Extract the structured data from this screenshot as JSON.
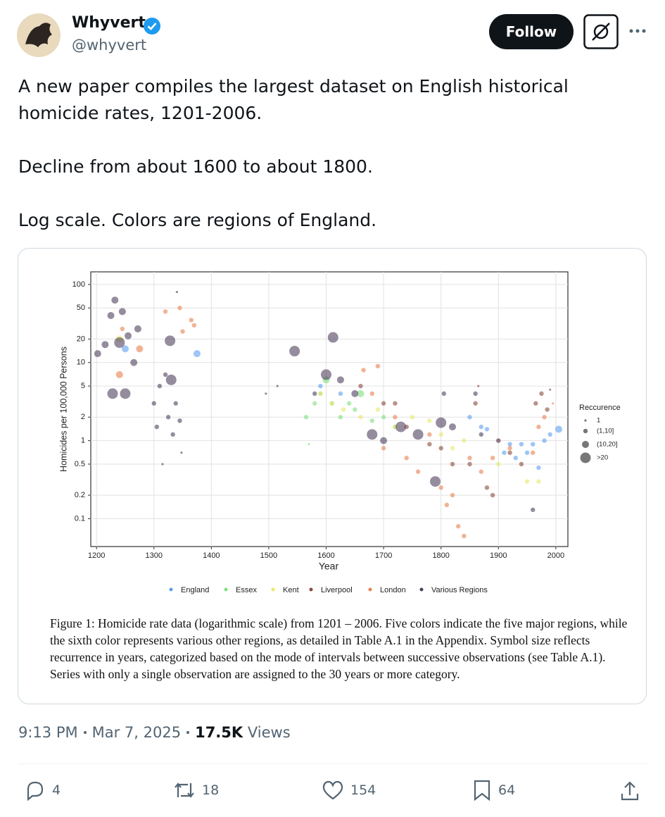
{
  "tweet": {
    "author_name": "Whyvert",
    "handle": "@whyvert",
    "follow": "Follow",
    "text": [
      "A new paper compiles the largest dataset on English historical homicide rates, 1201-2006.",
      "Decline from about 1600 to about 1800.",
      "Log scale. Colors are regions of England."
    ],
    "time": "9:13 PM",
    "date": "Mar 7, 2025",
    "views_count": "17.5K",
    "views_label": "Views",
    "replies": 4,
    "retweets": 18,
    "likes": 154,
    "bookmarks": 64
  },
  "chart_data": {
    "type": "scatter",
    "xlabel": "Year",
    "ylabel": "Homicides per 100,000 Persons",
    "log_y": true,
    "grid": true,
    "xlim": [
      1190,
      2021
    ],
    "ylim": [
      0.044,
      145
    ],
    "xticks": [
      1200,
      1300,
      1400,
      1500,
      1600,
      1700,
      1800,
      1900,
      2000
    ],
    "yticks": [
      0.1,
      0.2,
      0.5,
      1,
      2,
      5,
      10,
      20,
      50,
      100
    ],
    "size_legend": {
      "title": "Reccurence",
      "labels": [
        "1",
        "(1,10]",
        "(10,20]",
        ">20"
      ]
    },
    "series": [
      {
        "name": "England",
        "color": "#5b9ff0",
        "x": [
          1250,
          1375,
          1590,
          1625,
          1850,
          1870,
          1880,
          1900,
          1910,
          1920,
          1930,
          1940,
          1950,
          1960,
          1970,
          1980,
          1990,
          2005
        ],
        "values": [
          15,
          13,
          5,
          4,
          2,
          1.5,
          1.4,
          1,
          0.7,
          0.9,
          0.6,
          0.9,
          0.7,
          0.9,
          0.45,
          1,
          1.2,
          1.4
        ],
        "sizes": [
          "(10,20]",
          "(10,20]",
          "(1,10]",
          "(1,10]",
          "(1,10]",
          "(1,10]",
          "(1,10]",
          "(1,10]",
          "(1,10]",
          "(1,10]",
          "(1,10]",
          "(1,10]",
          "(1,10]",
          "(1,10]",
          "(1,10]",
          "(1,10]",
          "(1,10]",
          "(10,20]"
        ]
      },
      {
        "name": "Essex",
        "color": "#7fe07f",
        "x": [
          1565,
          1570,
          1580,
          1590,
          1600,
          1610,
          1625,
          1640,
          1650,
          1660,
          1680,
          1700,
          1720
        ],
        "values": [
          2,
          0.9,
          3,
          4,
          6,
          3,
          2,
          3,
          2.5,
          4,
          1.8,
          2,
          1.5
        ],
        "sizes": [
          "(1,10]",
          "1",
          "(1,10]",
          "(1,10]",
          "(10,20]",
          "(1,10]",
          "(1,10]",
          "(1,10]",
          "(1,10]",
          "(10,20]",
          "(1,10]",
          "(1,10]",
          "(1,10]"
        ]
      },
      {
        "name": "Kent",
        "color": "#e8e86a",
        "x": [
          1240,
          1590,
          1610,
          1630,
          1660,
          1690,
          1720,
          1750,
          1780,
          1800,
          1820,
          1840,
          1900,
          1950,
          1970
        ],
        "values": [
          20,
          4,
          3,
          2.5,
          2,
          2.5,
          1.5,
          2,
          1.8,
          1.2,
          0.8,
          1,
          0.5,
          0.3,
          0.3
        ],
        "sizes": [
          "(10,20]",
          "(1,10]",
          "(1,10]",
          "(1,10]",
          "(1,10]",
          "(1,10]",
          "(1,10]",
          "(1,10]",
          "(1,10]",
          "(1,10]",
          "(1,10]",
          "(1,10]",
          "(1,10]",
          "(1,10]",
          "(1,10]"
        ]
      },
      {
        "name": "Liverpool",
        "color": "#8b4a3a",
        "x": [
          1660,
          1700,
          1720,
          1740,
          1780,
          1800,
          1820,
          1850,
          1860,
          1865,
          1880,
          1890,
          1900,
          1920,
          1940,
          1965,
          1975,
          1985,
          1990
        ],
        "values": [
          5,
          3,
          3,
          1.5,
          0.9,
          0.8,
          0.5,
          0.5,
          3,
          5,
          0.25,
          0.2,
          1,
          0.7,
          0.5,
          3,
          4,
          2.5,
          4.5
        ],
        "sizes": [
          "(1,10]",
          "(1,10]",
          "(1,10]",
          "(1,10]",
          "(1,10]",
          "(1,10]",
          "(1,10]",
          "(1,10]",
          "(1,10]",
          "1",
          "(1,10]",
          "(1,10]",
          "(1,10]",
          "(1,10]",
          "(1,10]",
          "(1,10]",
          "(1,10]",
          "(1,10]",
          "1"
        ]
      },
      {
        "name": "London",
        "color": "#e8804f",
        "x": [
          1240,
          1245,
          1275,
          1320,
          1345,
          1350,
          1365,
          1370,
          1665,
          1680,
          1690,
          1700,
          1720,
          1740,
          1760,
          1780,
          1800,
          1810,
          1820,
          1830,
          1840,
          1850,
          1870,
          1890,
          1920,
          1960,
          1970,
          1980,
          1995
        ],
        "values": [
          7,
          27,
          15,
          45,
          50,
          25,
          35,
          30,
          8,
          4,
          9,
          0.8,
          2,
          0.6,
          0.4,
          1.2,
          0.25,
          0.15,
          0.2,
          0.08,
          0.06,
          0.6,
          0.4,
          0.6,
          0.8,
          0.7,
          1.5,
          2,
          3
        ],
        "sizes": [
          "(10,20]",
          "(1,10]",
          "(10,20]",
          "(1,10]",
          "(1,10]",
          "(1,10]",
          "(1,10]",
          "(1,10]",
          "(1,10]",
          "(1,10]",
          "(1,10]",
          "(1,10]",
          "(1,10]",
          "(1,10]",
          "(1,10]",
          "(1,10]",
          "(1,10]",
          "(1,10]",
          "(1,10]",
          "(1,10]",
          "(1,10]",
          "(1,10]",
          "(1,10]",
          "(1,10]",
          "(1,10]",
          "(1,10]",
          "(1,10]",
          "(1,10]",
          "1"
        ]
      },
      {
        "name": "Various Regions",
        "color": "#4e3f5e",
        "x": [
          1202,
          1215,
          1225,
          1228,
          1232,
          1240,
          1245,
          1250,
          1255,
          1265,
          1272,
          1300,
          1305,
          1310,
          1315,
          1320,
          1325,
          1328,
          1330,
          1333,
          1338,
          1340,
          1345,
          1348,
          1495,
          1515,
          1545,
          1580,
          1600,
          1612,
          1625,
          1650,
          1680,
          1700,
          1730,
          1760,
          1790,
          1800,
          1805,
          1820,
          1860,
          1870,
          1960
        ],
        "values": [
          13,
          17,
          40,
          4,
          63,
          18,
          45,
          4,
          22,
          10,
          27,
          3,
          1.5,
          5,
          0.5,
          7,
          2,
          19,
          6,
          1.2,
          3,
          80,
          1.8,
          0.7,
          4,
          5,
          14,
          4,
          7,
          21,
          6,
          4,
          1.2,
          1,
          1.5,
          1.2,
          0.3,
          1.7,
          4,
          1.5,
          4,
          1.2,
          0.13
        ],
        "sizes": [
          "(10,20]",
          "(10,20]",
          "(10,20]",
          ">20",
          "(10,20]",
          ">20",
          "(10,20]",
          ">20",
          "(10,20]",
          "(10,20]",
          "(10,20]",
          "(1,10]",
          "(1,10]",
          "(1,10]",
          "1",
          "(1,10]",
          "(1,10]",
          ">20",
          ">20",
          "(1,10]",
          "(1,10]",
          "1",
          "(1,10]",
          "1",
          "1",
          "1",
          ">20",
          "(1,10]",
          ">20",
          ">20",
          "(10,20]",
          "(10,20]",
          ">20",
          "(10,20]",
          ">20",
          ">20",
          ">20",
          ">20",
          "(1,10]",
          "(10,20]",
          "(1,10]",
          "(1,10]",
          "(1,10]"
        ]
      }
    ],
    "caption": "Figure 1: Homicide rate data (logarithmic scale) from 1201 – 2006. Five colors indicate the five major regions, while the sixth color represents various other regions, as detailed in Table A.1 in the Appendix. Symbol size reflects recurrence in years, categorized based on the mode of intervals between successive observations (see Table A.1). Series with only a single observation are assigned to the 30 years or more category."
  }
}
